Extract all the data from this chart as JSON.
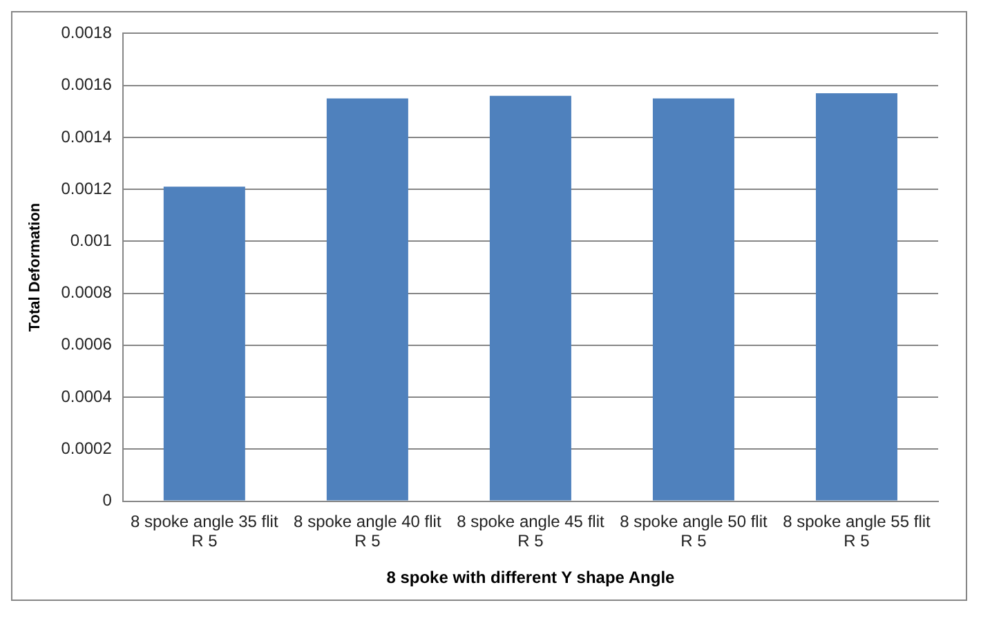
{
  "chart_data": {
    "type": "bar",
    "xlabel": "8 spoke with different Y shape Angle",
    "ylabel": "Total Deformation",
    "categories": [
      "8 spoke angle 35 flit R 5",
      "8 spoke angle 40 flit R 5",
      "8 spoke angle 45 flit R 5",
      "8 spoke angle 50 flit R 5",
      "8 spoke angle 55 flit R 5"
    ],
    "values": [
      0.00121,
      0.00155,
      0.00156,
      0.00155,
      0.00157
    ],
    "color": "#4f81bd",
    "ylim": [
      0,
      0.0018
    ],
    "yticks": [
      0,
      0.0002,
      0.0004,
      0.0006,
      0.0008,
      0.001,
      0.0012,
      0.0014,
      0.0016,
      0.0018
    ],
    "grid": "y",
    "legend": false
  }
}
